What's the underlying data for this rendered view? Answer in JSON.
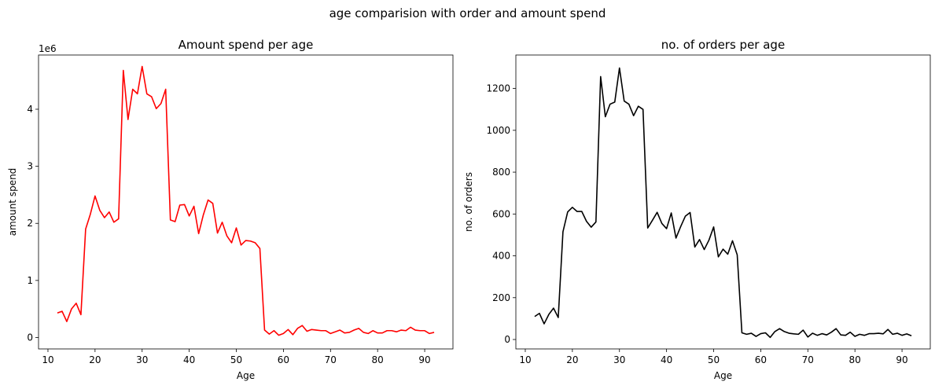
{
  "figure": {
    "suptitle": "age comparision with order and amount spend"
  },
  "chart_data": [
    {
      "type": "line",
      "title": "Amount spend per age",
      "xlabel": "Age",
      "ylabel": "amount spend",
      "offset_text": "1e6",
      "color": "#ff0000",
      "xlim": [
        8,
        96
      ],
      "ylim": [
        -0.2,
        4.95
      ],
      "xticks": [
        10,
        20,
        30,
        40,
        50,
        60,
        70,
        80,
        90
      ],
      "yticks": [
        0,
        1,
        2,
        3,
        4
      ],
      "x": [
        12,
        13,
        14,
        15,
        16,
        17,
        18,
        19,
        20,
        21,
        22,
        23,
        24,
        25,
        26,
        27,
        28,
        29,
        30,
        31,
        32,
        33,
        34,
        35,
        36,
        37,
        38,
        39,
        40,
        41,
        42,
        43,
        44,
        45,
        46,
        47,
        48,
        49,
        50,
        51,
        52,
        53,
        54,
        55,
        56,
        57,
        58,
        59,
        60,
        61,
        62,
        63,
        64,
        65,
        66,
        67,
        68,
        69,
        70,
        71,
        72,
        73,
        74,
        75,
        76,
        77,
        78,
        79,
        80,
        81,
        82,
        83,
        84,
        85,
        86,
        87,
        88,
        89,
        90,
        91,
        92
      ],
      "y": [
        0.43,
        0.46,
        0.28,
        0.5,
        0.6,
        0.4,
        1.9,
        2.16,
        2.48,
        2.23,
        2.1,
        2.2,
        2.02,
        2.08,
        4.68,
        3.82,
        4.35,
        4.27,
        4.75,
        4.27,
        4.22,
        4.01,
        4.1,
        4.35,
        2.06,
        2.03,
        2.32,
        2.33,
        2.13,
        2.3,
        1.82,
        2.15,
        2.41,
        2.35,
        1.83,
        2.02,
        1.78,
        1.66,
        1.92,
        1.62,
        1.7,
        1.69,
        1.66,
        1.56,
        0.13,
        0.06,
        0.12,
        0.04,
        0.07,
        0.14,
        0.05,
        0.16,
        0.21,
        0.11,
        0.14,
        0.13,
        0.12,
        0.12,
        0.07,
        0.1,
        0.13,
        0.08,
        0.09,
        0.13,
        0.16,
        0.09,
        0.07,
        0.12,
        0.08,
        0.08,
        0.12,
        0.12,
        0.1,
        0.13,
        0.12,
        0.18,
        0.13,
        0.12,
        0.12,
        0.07,
        0.09
      ]
    },
    {
      "type": "line",
      "title": "no. of orders per age",
      "xlabel": "Age",
      "ylabel": "no. of orders",
      "color": "#000000",
      "xlim": [
        8,
        96
      ],
      "ylim": [
        -45,
        1360
      ],
      "xticks": [
        10,
        20,
        30,
        40,
        50,
        60,
        70,
        80,
        90
      ],
      "yticks": [
        0,
        200,
        400,
        600,
        800,
        1000,
        1200
      ],
      "x": [
        12,
        13,
        14,
        15,
        16,
        17,
        18,
        19,
        20,
        21,
        22,
        23,
        24,
        25,
        26,
        27,
        28,
        29,
        30,
        31,
        32,
        33,
        34,
        35,
        36,
        37,
        38,
        39,
        40,
        41,
        42,
        43,
        44,
        45,
        46,
        47,
        48,
        49,
        50,
        51,
        52,
        53,
        54,
        55,
        56,
        57,
        58,
        59,
        60,
        61,
        62,
        63,
        64,
        65,
        66,
        67,
        68,
        69,
        70,
        71,
        72,
        73,
        74,
        75,
        76,
        77,
        78,
        79,
        80,
        81,
        82,
        83,
        84,
        85,
        86,
        87,
        88,
        89,
        90,
        91,
        92
      ],
      "y": [
        110,
        125,
        75,
        120,
        150,
        105,
        515,
        610,
        632,
        612,
        612,
        565,
        537,
        562,
        1257,
        1065,
        1125,
        1135,
        1298,
        1140,
        1125,
        1070,
        1115,
        1100,
        533,
        570,
        608,
        555,
        530,
        605,
        485,
        540,
        590,
        607,
        442,
        478,
        430,
        475,
        538,
        395,
        432,
        408,
        472,
        405,
        32,
        25,
        30,
        15,
        28,
        32,
        10,
        38,
        52,
        38,
        30,
        27,
        25,
        45,
        12,
        30,
        20,
        28,
        22,
        35,
        52,
        22,
        20,
        35,
        15,
        25,
        20,
        28,
        28,
        30,
        27,
        48,
        25,
        30,
        20,
        27,
        18
      ]
    }
  ]
}
